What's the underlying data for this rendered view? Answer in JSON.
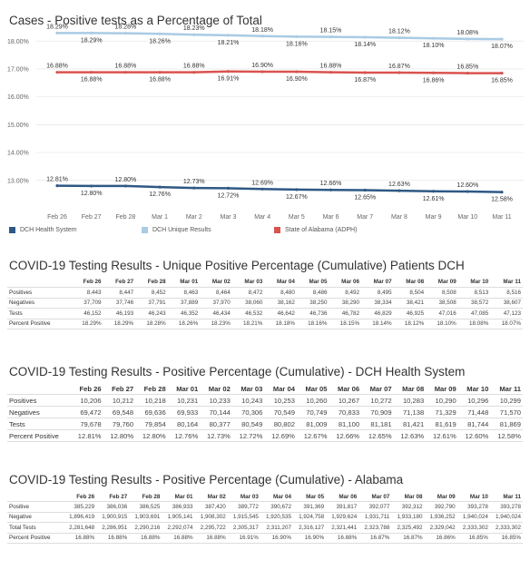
{
  "chart_title": "Cases - Positive tests as a Percentage of Total",
  "chart_data": {
    "type": "line",
    "categories": [
      "Feb 26",
      "Feb 27",
      "Feb 28",
      "Mar 1",
      "Mar 2",
      "Mar 3",
      "Mar 4",
      "Mar 5",
      "Mar 6",
      "Mar 7",
      "Mar 8",
      "Mar 9",
      "Mar 10",
      "Mar 11"
    ],
    "y_ticks": [
      "18.00%",
      "17.00%",
      "16.00%",
      "15.00%",
      "14.00%",
      "13.00%"
    ],
    "ylim": [
      12.5,
      18.4
    ],
    "series": [
      {
        "name": "DCH Health System",
        "color": "#2e5984",
        "values": [
          12.81,
          12.8,
          12.8,
          12.76,
          12.73,
          12.72,
          12.69,
          12.67,
          12.66,
          12.65,
          12.63,
          12.61,
          12.6,
          12.58
        ],
        "labels": [
          "12.81%",
          "12.80%",
          "12.80%",
          "12.76%",
          "12.73%",
          "12.72%",
          "12.69%",
          "12.67%",
          "12.66%",
          "12.65%",
          "12.63%",
          "12.61%",
          "12.60%",
          "12.58%"
        ]
      },
      {
        "name": "DCH Unique Results",
        "color": "#a9cbe4",
        "values": [
          18.29,
          18.29,
          18.28,
          18.26,
          18.23,
          18.21,
          18.18,
          18.16,
          18.15,
          18.14,
          18.12,
          18.1,
          18.08,
          18.07
        ],
        "labels": [
          "18.29%",
          "18.29%",
          "18.28%",
          "18.26%",
          "18.23%",
          "18.21%",
          "18.18%",
          "18.16%",
          "18.15%",
          "18.14%",
          "18.12%",
          "18.10%",
          "18.08%",
          "18.07%"
        ]
      },
      {
        "name": "State of Alabama (ADPH)",
        "color": "#d9534f",
        "values": [
          16.88,
          16.88,
          16.88,
          16.88,
          16.88,
          16.91,
          16.9,
          16.9,
          16.88,
          16.87,
          16.87,
          16.86,
          16.85,
          16.85
        ],
        "labels": [
          "16.88%",
          "16.88%",
          "16.88%",
          "16.88%",
          "16.88%",
          "16.91%",
          "16.90%",
          "16.90%",
          "16.88%",
          "16.87%",
          "16.87%",
          "16.86%",
          "16.85%",
          "16.85%"
        ]
      }
    ]
  },
  "tables": [
    {
      "title": "COVID-19 Testing Results - Unique Positive Percentage (Cumulative) Patients DCH",
      "columns": [
        "Feb 26",
        "Feb 27",
        "Feb 28",
        "Mar 01",
        "Mar 02",
        "Mar 03",
        "Mar 04",
        "Mar 05",
        "Mar 06",
        "Mar 07",
        "Mar 08",
        "Mar 09",
        "Mar 10",
        "Mar 11"
      ],
      "rows": [
        {
          "label": "Positives",
          "cells": [
            "8,443",
            "8,447",
            "8,452",
            "8,463",
            "8,464",
            "8,472",
            "8,480",
            "8,486",
            "8,492",
            "8,495",
            "8,504",
            "8,508",
            "8,513",
            "8,516"
          ]
        },
        {
          "label": "Negatives",
          "cells": [
            "37,709",
            "37,746",
            "37,791",
            "37,889",
            "37,970",
            "38,060",
            "38,162",
            "38,250",
            "38,290",
            "38,334",
            "38,421",
            "38,508",
            "38,572",
            "38,607"
          ]
        },
        {
          "label": "Tests",
          "cells": [
            "46,152",
            "46,193",
            "46,243",
            "46,352",
            "46,434",
            "46,532",
            "46,642",
            "46,736",
            "46,782",
            "46,829",
            "46,925",
            "47,016",
            "47,085",
            "47,123"
          ]
        },
        {
          "label": "Percent Positive",
          "cells": [
            "18.29%",
            "18.29%",
            "18.28%",
            "18.26%",
            "18.23%",
            "18.21%",
            "18.18%",
            "18.16%",
            "18.15%",
            "18.14%",
            "18.12%",
            "18.10%",
            "18.08%",
            "18.07%"
          ]
        }
      ]
    },
    {
      "title": "COVID-19 Testing Results - Positive Percentage (Cumulative) - DCH Health System",
      "columns": [
        "Feb 26",
        "Feb 27",
        "Feb 28",
        "Mar 01",
        "Mar 02",
        "Mar 03",
        "Mar 04",
        "Mar 05",
        "Mar 06",
        "Mar 07",
        "Mar 08",
        "Mar 09",
        "Mar 10",
        "Mar 11"
      ],
      "rows": [
        {
          "label": "Positives",
          "cells": [
            "10,206",
            "10,212",
            "10,218",
            "10,231",
            "10,233",
            "10,243",
            "10,253",
            "10,260",
            "10,267",
            "10,272",
            "10,283",
            "10,290",
            "10,296",
            "10,299"
          ]
        },
        {
          "label": "Negatives",
          "cells": [
            "69,472",
            "69,548",
            "69,636",
            "69,933",
            "70,144",
            "70,306",
            "70,549",
            "70,749",
            "70,833",
            "70,909",
            "71,138",
            "71,329",
            "71,448",
            "71,570"
          ]
        },
        {
          "label": "Tests",
          "cells": [
            "79,678",
            "79,760",
            "79,854",
            "80,164",
            "80,377",
            "80,549",
            "80,802",
            "81,009",
            "81,100",
            "81,181",
            "81,421",
            "81,619",
            "81,744",
            "81,869"
          ]
        },
        {
          "label": "Percent Positive",
          "cells": [
            "12.81%",
            "12.80%",
            "12.80%",
            "12.76%",
            "12.73%",
            "12.72%",
            "12.69%",
            "12.67%",
            "12.66%",
            "12.65%",
            "12.63%",
            "12.61%",
            "12.60%",
            "12.58%"
          ]
        }
      ]
    },
    {
      "title": "COVID-19 Testing Results - Positive Percentage (Cumulative) - Alabama",
      "columns": [
        "Feb 26",
        "Feb 27",
        "Feb 28",
        "Mar 01",
        "Mar 02",
        "Mar 03",
        "Mar 04",
        "Mar 05",
        "Mar 06",
        "Mar 07",
        "Mar 08",
        "Mar 09",
        "Mar 10",
        "Mar 11"
      ],
      "rows": [
        {
          "label": "Positive",
          "cells": [
            "385,229",
            "386,036",
            "386,525",
            "386,933",
            "387,420",
            "389,772",
            "390,672",
            "391,369",
            "391,817",
            "392,077",
            "392,312",
            "392,790",
            "393,278",
            "393,278"
          ]
        },
        {
          "label": "Negative",
          "cells": [
            "1,896,419",
            "1,900,915",
            "1,903,691",
            "1,905,141",
            "1,908,302",
            "1,915,545",
            "1,920,535",
            "1,924,758",
            "1,929,624",
            "1,931,711",
            "1,933,180",
            "1,936,252",
            "1,940,024",
            "1,940,024"
          ]
        },
        {
          "label": "Total Tests",
          "cells": [
            "2,281,648",
            "2,286,951",
            "2,290,216",
            "2,292,074",
            "2,295,722",
            "2,305,317",
            "2,311,207",
            "2,316,127",
            "2,321,441",
            "2,323,788",
            "2,325,492",
            "2,329,042",
            "2,333,302",
            "2,333,302"
          ]
        },
        {
          "label": "Percent Positive",
          "cells": [
            "16.88%",
            "16.88%",
            "16.88%",
            "16.88%",
            "16.88%",
            "16.91%",
            "16.90%",
            "16.90%",
            "16.88%",
            "16.87%",
            "16.87%",
            "16.86%",
            "16.85%",
            "16.85%"
          ]
        }
      ]
    }
  ]
}
